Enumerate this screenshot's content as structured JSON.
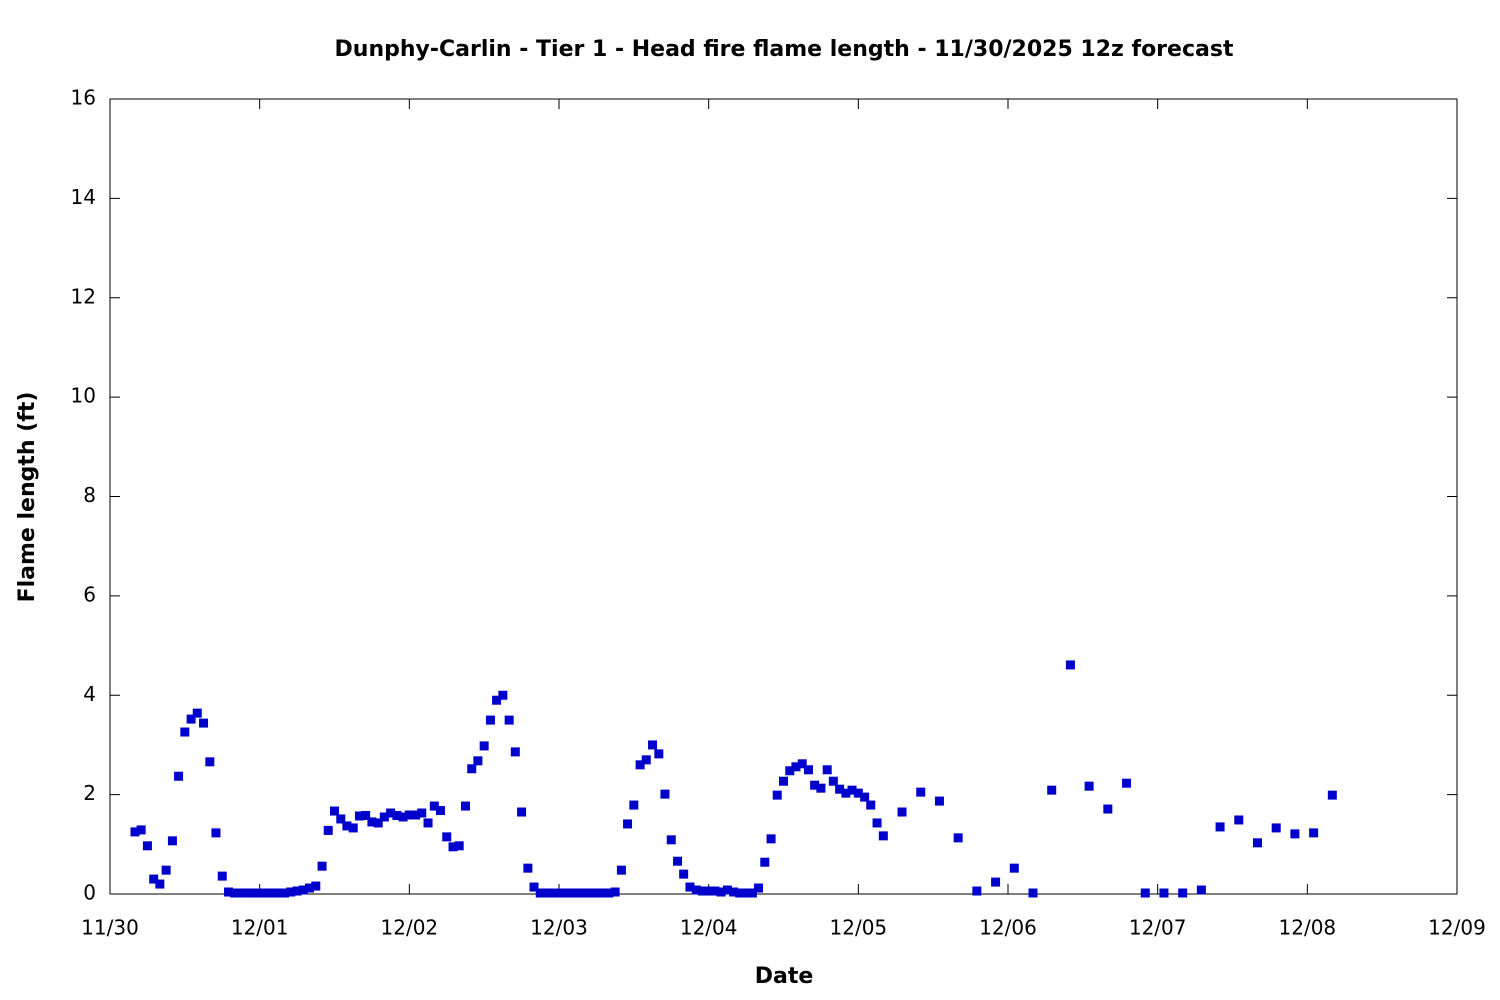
{
  "chart_data": {
    "type": "scatter",
    "title": "Dunphy-Carlin - Tier 1 - Head fire flame length - 11/30/2025 12z forecast",
    "x_label": "Date",
    "y_label": "Flame length (ft)",
    "xlim": [
      0,
      9
    ],
    "xticks": [
      {
        "value": 0,
        "label": "11/30"
      },
      {
        "value": 1,
        "label": "12/01"
      },
      {
        "value": 2,
        "label": "12/02"
      },
      {
        "value": 3,
        "label": "12/03"
      },
      {
        "value": 4,
        "label": "12/04"
      },
      {
        "value": 5,
        "label": "12/05"
      },
      {
        "value": 6,
        "label": "12/06"
      },
      {
        "value": 7,
        "label": "12/07"
      },
      {
        "value": 8,
        "label": "12/08"
      },
      {
        "value": 9,
        "label": "12/09"
      }
    ],
    "ylim": [
      0,
      16
    ],
    "yticks": [
      0,
      2,
      4,
      6,
      8,
      10,
      12,
      14,
      16
    ],
    "grid": false,
    "series": [
      {
        "color": "#0000cc",
        "x": [
          0.167,
          0.208,
          0.25,
          0.292,
          0.333,
          0.375,
          0.417,
          0.458,
          0.5,
          0.542,
          0.583,
          0.625,
          0.667,
          0.708,
          0.75,
          0.792,
          0.833,
          0.875,
          0.917,
          0.958,
          1,
          1.042,
          1.083,
          1.125,
          1.167,
          1.208,
          1.25,
          1.292,
          1.333,
          1.375,
          1.417,
          1.458,
          1.5,
          1.542,
          1.583,
          1.625,
          1.667,
          1.708,
          1.75,
          1.792,
          1.833,
          1.875,
          1.917,
          1.958,
          2,
          2.042,
          2.083,
          2.125,
          2.167,
          2.208,
          2.25,
          2.292,
          2.333,
          2.375,
          2.417,
          2.458,
          2.5,
          2.542,
          2.583,
          2.625,
          2.667,
          2.708,
          2.75,
          2.792,
          2.833,
          2.875,
          2.917,
          2.958,
          3,
          3.042,
          3.083,
          3.125,
          3.167,
          3.208,
          3.25,
          3.292,
          3.333,
          3.375,
          3.417,
          3.458,
          3.5,
          3.542,
          3.583,
          3.625,
          3.667,
          3.708,
          3.75,
          3.792,
          3.833,
          3.875,
          3.917,
          3.958,
          4,
          4.042,
          4.083,
          4.125,
          4.167,
          4.208,
          4.25,
          4.292,
          4.333,
          4.375,
          4.417,
          4.458,
          4.5,
          4.542,
          4.583,
          4.625,
          4.667,
          4.708,
          4.75,
          4.792,
          4.833,
          4.875,
          4.917,
          4.958,
          5,
          5.042,
          5.083,
          5.125,
          5.167,
          5.292,
          5.417,
          5.542,
          5.667,
          5.792,
          5.917,
          6.042,
          6.167,
          6.292,
          6.417,
          6.542,
          6.667,
          6.792,
          6.917,
          7.042,
          7.167,
          7.292,
          7.417,
          7.542,
          7.667,
          7.792,
          7.917,
          8.042,
          8.167
        ],
        "values": [
          1.25,
          1.29,
          0.97,
          0.3,
          0.2,
          0.48,
          1.07,
          2.37,
          3.26,
          3.52,
          3.64,
          3.44,
          2.66,
          1.23,
          0.36,
          0.04,
          0.02,
          0.02,
          0.02,
          0.02,
          0.02,
          0.02,
          0.02,
          0.02,
          0.02,
          0.04,
          0.06,
          0.08,
          0.12,
          0.16,
          0.56,
          1.28,
          1.67,
          1.51,
          1.37,
          1.33,
          1.57,
          1.58,
          1.45,
          1.43,
          1.55,
          1.63,
          1.58,
          1.55,
          1.59,
          1.59,
          1.63,
          1.43,
          1.77,
          1.68,
          1.15,
          0.95,
          0.97,
          1.77,
          2.52,
          2.68,
          2.98,
          3.5,
          3.9,
          4.0,
          3.5,
          2.86,
          1.65,
          0.52,
          0.14,
          0.02,
          0.02,
          0.02,
          0.02,
          0.02,
          0.02,
          0.02,
          0.02,
          0.02,
          0.02,
          0.02,
          0.02,
          0.04,
          0.48,
          1.41,
          1.79,
          2.6,
          2.7,
          3.0,
          2.82,
          2.01,
          1.09,
          0.66,
          0.4,
          0.14,
          0.08,
          0.06,
          0.06,
          0.06,
          0.04,
          0.08,
          0.04,
          0.02,
          0.02,
          0.02,
          0.12,
          0.64,
          1.11,
          1.99,
          2.27,
          2.48,
          2.56,
          2.62,
          2.5,
          2.19,
          2.13,
          2.5,
          2.27,
          2.11,
          2.03,
          2.09,
          2.03,
          1.95,
          1.79,
          1.43,
          1.17,
          1.65,
          2.05,
          1.87,
          1.13,
          0.06,
          0.24,
          0.52,
          0.02,
          2.09,
          4.61,
          2.17,
          1.71,
          2.23,
          0.02,
          0.02,
          0.02,
          0.08,
          1.35,
          1.49,
          1.03,
          1.33,
          1.21,
          1.23,
          1.99
        ]
      }
    ]
  }
}
